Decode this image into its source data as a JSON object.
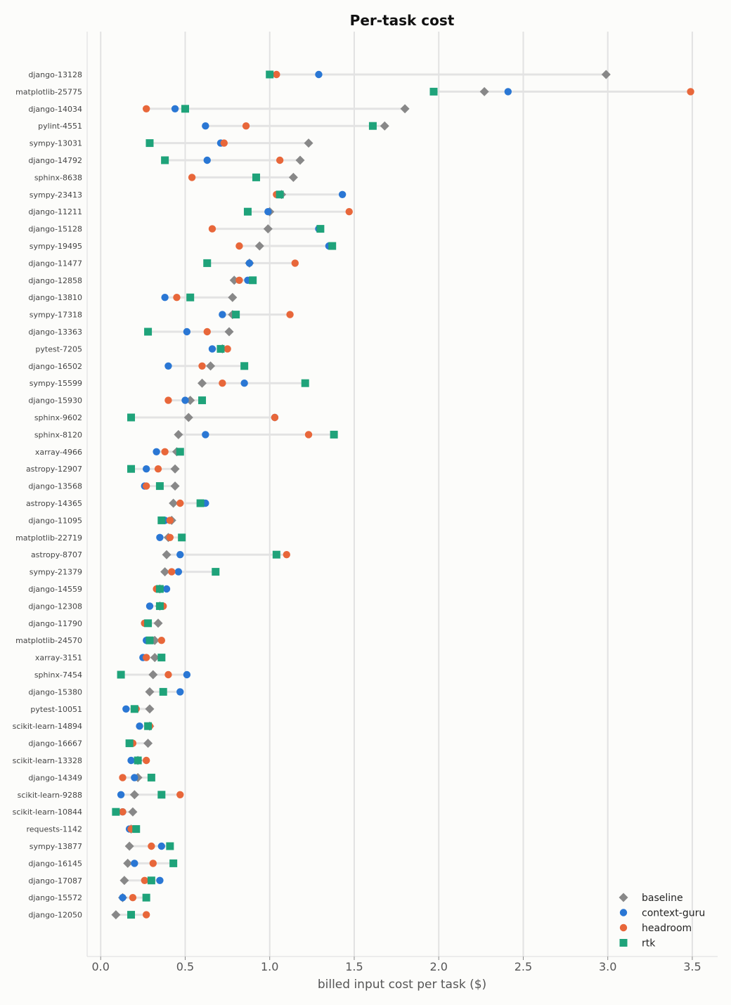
{
  "chart_data": {
    "type": "scatter",
    "title": "Per-task cost",
    "xlabel": "billed input cost per task ($)",
    "ylabel": "",
    "xlim": [
      -0.08,
      3.65
    ],
    "xticks": [
      "0.0",
      "0.5",
      "1.0",
      "1.5",
      "2.0",
      "2.5",
      "3.0",
      "3.5"
    ],
    "grid": "vertical",
    "legend_position": "bottom-right",
    "categories": [
      "django-13128",
      "matplotlib-25775",
      "django-14034",
      "pylint-4551",
      "sympy-13031",
      "django-14792",
      "sphinx-8638",
      "sympy-23413",
      "django-11211",
      "django-15128",
      "sympy-19495",
      "django-11477",
      "django-12858",
      "django-13810",
      "sympy-17318",
      "django-13363",
      "pytest-7205",
      "django-16502",
      "sympy-15599",
      "django-15930",
      "sphinx-9602",
      "sphinx-8120",
      "xarray-4966",
      "astropy-12907",
      "django-13568",
      "astropy-14365",
      "django-11095",
      "matplotlib-22719",
      "astropy-8707",
      "sympy-21379",
      "django-14559",
      "django-12308",
      "django-11790",
      "matplotlib-24570",
      "xarray-3151",
      "sphinx-7454",
      "django-15380",
      "pytest-10051",
      "scikit-learn-14894",
      "django-16667",
      "scikit-learn-13328",
      "django-14349",
      "scikit-learn-9288",
      "scikit-learn-10844",
      "requests-1142",
      "sympy-13877",
      "django-16145",
      "django-17087",
      "django-15572",
      "django-12050"
    ],
    "series": [
      {
        "name": "baseline",
        "color": "#888888",
        "marker": "diamond",
        "values": [
          2.99,
          2.27,
          1.8,
          1.68,
          1.23,
          1.18,
          1.14,
          1.07,
          1.0,
          0.99,
          0.94,
          0.88,
          0.79,
          0.78,
          0.78,
          0.76,
          0.72,
          0.65,
          0.6,
          0.53,
          0.52,
          0.46,
          0.45,
          0.44,
          0.44,
          0.43,
          0.42,
          0.4,
          0.39,
          0.38,
          0.35,
          0.35,
          0.34,
          0.32,
          0.32,
          0.31,
          0.29,
          0.29,
          0.29,
          0.28,
          0.22,
          0.22,
          0.2,
          0.19,
          0.18,
          0.17,
          0.16,
          0.14,
          0.13,
          0.09
        ]
      },
      {
        "name": "context-guru",
        "color": "#2a77d4",
        "marker": "circle",
        "values": [
          1.29,
          2.41,
          0.44,
          0.62,
          0.71,
          0.63,
          null,
          1.43,
          0.99,
          1.29,
          1.35,
          0.88,
          0.87,
          0.38,
          0.72,
          0.51,
          0.66,
          0.4,
          0.85,
          0.5,
          1.03,
          0.62,
          0.33,
          0.27,
          0.26,
          0.62,
          0.38,
          0.35,
          0.47,
          0.46,
          0.39,
          0.29,
          0.26,
          0.27,
          0.25,
          0.51,
          0.47,
          0.15,
          0.23,
          0.17,
          0.18,
          0.2,
          0.12,
          0.13,
          0.17,
          0.36,
          0.2,
          0.35,
          0.13,
          null
        ]
      },
      {
        "name": "headroom",
        "color": "#e8673a",
        "marker": "circle",
        "values": [
          1.04,
          3.49,
          0.27,
          0.86,
          0.73,
          1.06,
          0.54,
          1.04,
          1.47,
          0.66,
          0.82,
          1.15,
          0.82,
          0.45,
          1.12,
          0.63,
          0.75,
          0.6,
          0.72,
          0.4,
          1.03,
          1.23,
          0.38,
          0.34,
          0.27,
          0.47,
          0.41,
          0.41,
          1.1,
          0.42,
          0.33,
          0.37,
          0.26,
          0.36,
          0.27,
          0.4,
          null,
          0.21,
          0.29,
          0.19,
          0.27,
          0.13,
          0.47,
          0.13,
          0.18,
          0.3,
          0.31,
          0.26,
          0.19,
          0.27
        ]
      },
      {
        "name": "rtk",
        "color": "#1fa37a",
        "marker": "square",
        "values": [
          1.0,
          1.97,
          0.5,
          1.61,
          0.29,
          0.38,
          0.92,
          1.06,
          0.87,
          1.3,
          1.37,
          0.63,
          0.9,
          0.53,
          0.8,
          0.28,
          0.71,
          0.85,
          1.21,
          0.6,
          0.18,
          1.38,
          0.47,
          0.18,
          0.35,
          0.59,
          0.36,
          0.48,
          1.04,
          0.68,
          0.35,
          0.35,
          0.28,
          0.29,
          0.36,
          0.12,
          0.37,
          0.2,
          0.28,
          0.17,
          0.22,
          0.3,
          0.36,
          0.09,
          0.21,
          0.41,
          0.43,
          0.3,
          0.27,
          0.18
        ]
      }
    ]
  }
}
